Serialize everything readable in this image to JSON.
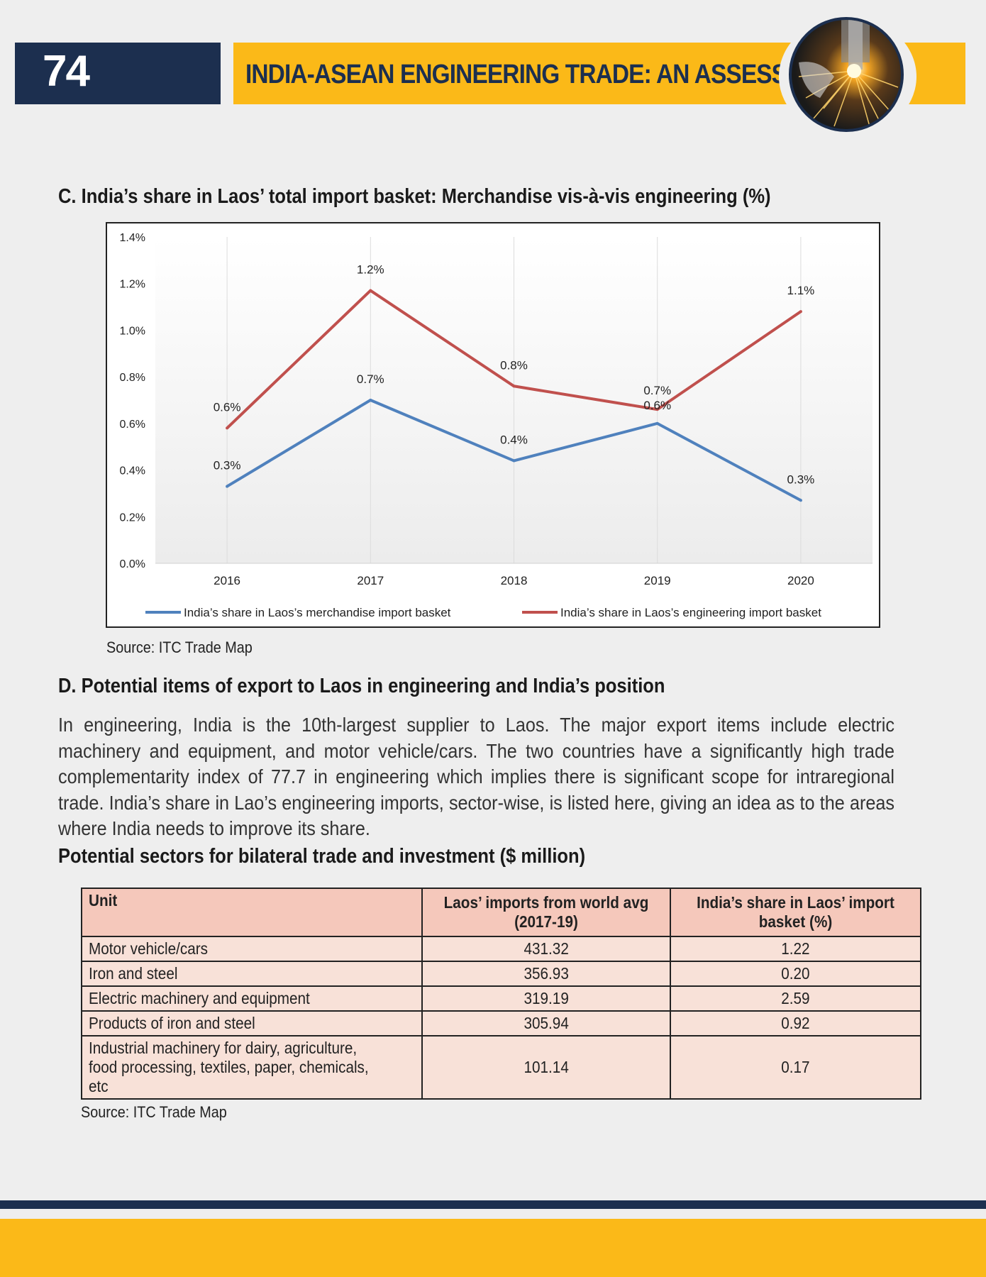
{
  "header": {
    "page_number": "74",
    "title": "INDIA-ASEAN ENGINEERING TRADE: AN ASSESSMENT",
    "badge_icon": "welding-sparks-icon",
    "colors": {
      "navy": "#1c2f4f",
      "gold": "#fbb918"
    }
  },
  "section_c": {
    "heading": "C. India’s share in Laos’ total import basket: Merchandise vis-à-vis engineering (%)",
    "source": "Source: ITC Trade Map"
  },
  "chart_data": {
    "type": "line",
    "x": [
      "2016",
      "2017",
      "2018",
      "2019",
      "2020"
    ],
    "ylim": [
      0,
      1.4
    ],
    "yticks": [
      "0.0%",
      "0.2%",
      "0.4%",
      "0.6%",
      "0.8%",
      "1.0%",
      "1.2%",
      "1.4%"
    ],
    "ytick_values": [
      0,
      0.2,
      0.4,
      0.6,
      0.8,
      1.0,
      1.2,
      1.4
    ],
    "grid": "vertical",
    "legend_position": "bottom",
    "series": [
      {
        "name": "India’s share in Laos’s merchandise import basket",
        "color": "#4f81bd",
        "values": [
          0.33,
          0.7,
          0.44,
          0.6,
          0.27
        ],
        "labels": [
          "0.3%",
          "0.7%",
          "0.4%",
          "0.6%",
          "0.3%"
        ]
      },
      {
        "name": "India’s share in Laos’s engineering import basket",
        "color": "#c0504d",
        "values": [
          0.58,
          1.17,
          0.76,
          0.66,
          1.08
        ],
        "labels": [
          "0.6%",
          "1.2%",
          "0.8%",
          "0.7%",
          "1.1%"
        ]
      }
    ]
  },
  "section_d": {
    "heading": "D. Potential items of export to Laos in engineering and India’s position",
    "paragraph": "In engineering, India is the 10th-largest supplier to Laos. The major export items include electric machinery and equipment, and motor vehicle/cars. The two countries have a significantly high trade complementarity index of 77.7 in engineering which implies there is significant scope for intraregional trade. India’s share in Lao’s engineering imports, sector-wise, is listed here, giving an idea as to the areas where India needs to improve its share."
  },
  "table_section": {
    "heading": "Potential sectors for bilateral trade and investment ($ million)",
    "columns": [
      "Unit",
      "Laos’ imports from world avg (2017-19)",
      "India’s share in Laos’ import basket (%)"
    ],
    "rows": [
      {
        "unit": "Motor vehicle/cars",
        "imports": "431.32",
        "share": "1.22"
      },
      {
        "unit": "Iron and steel",
        "imports": "356.93",
        "share": "0.20"
      },
      {
        "unit": "Electric machinery and equipment",
        "imports": "319.19",
        "share": "2.59"
      },
      {
        "unit": "Products of iron and steel",
        "imports": "305.94",
        "share": "0.92"
      },
      {
        "unit": "Industrial machinery for dairy, agriculture, food processing, textiles, paper, chemicals, etc",
        "imports": "101.14",
        "share": "0.17"
      }
    ],
    "source": "Source: ITC Trade Map"
  }
}
